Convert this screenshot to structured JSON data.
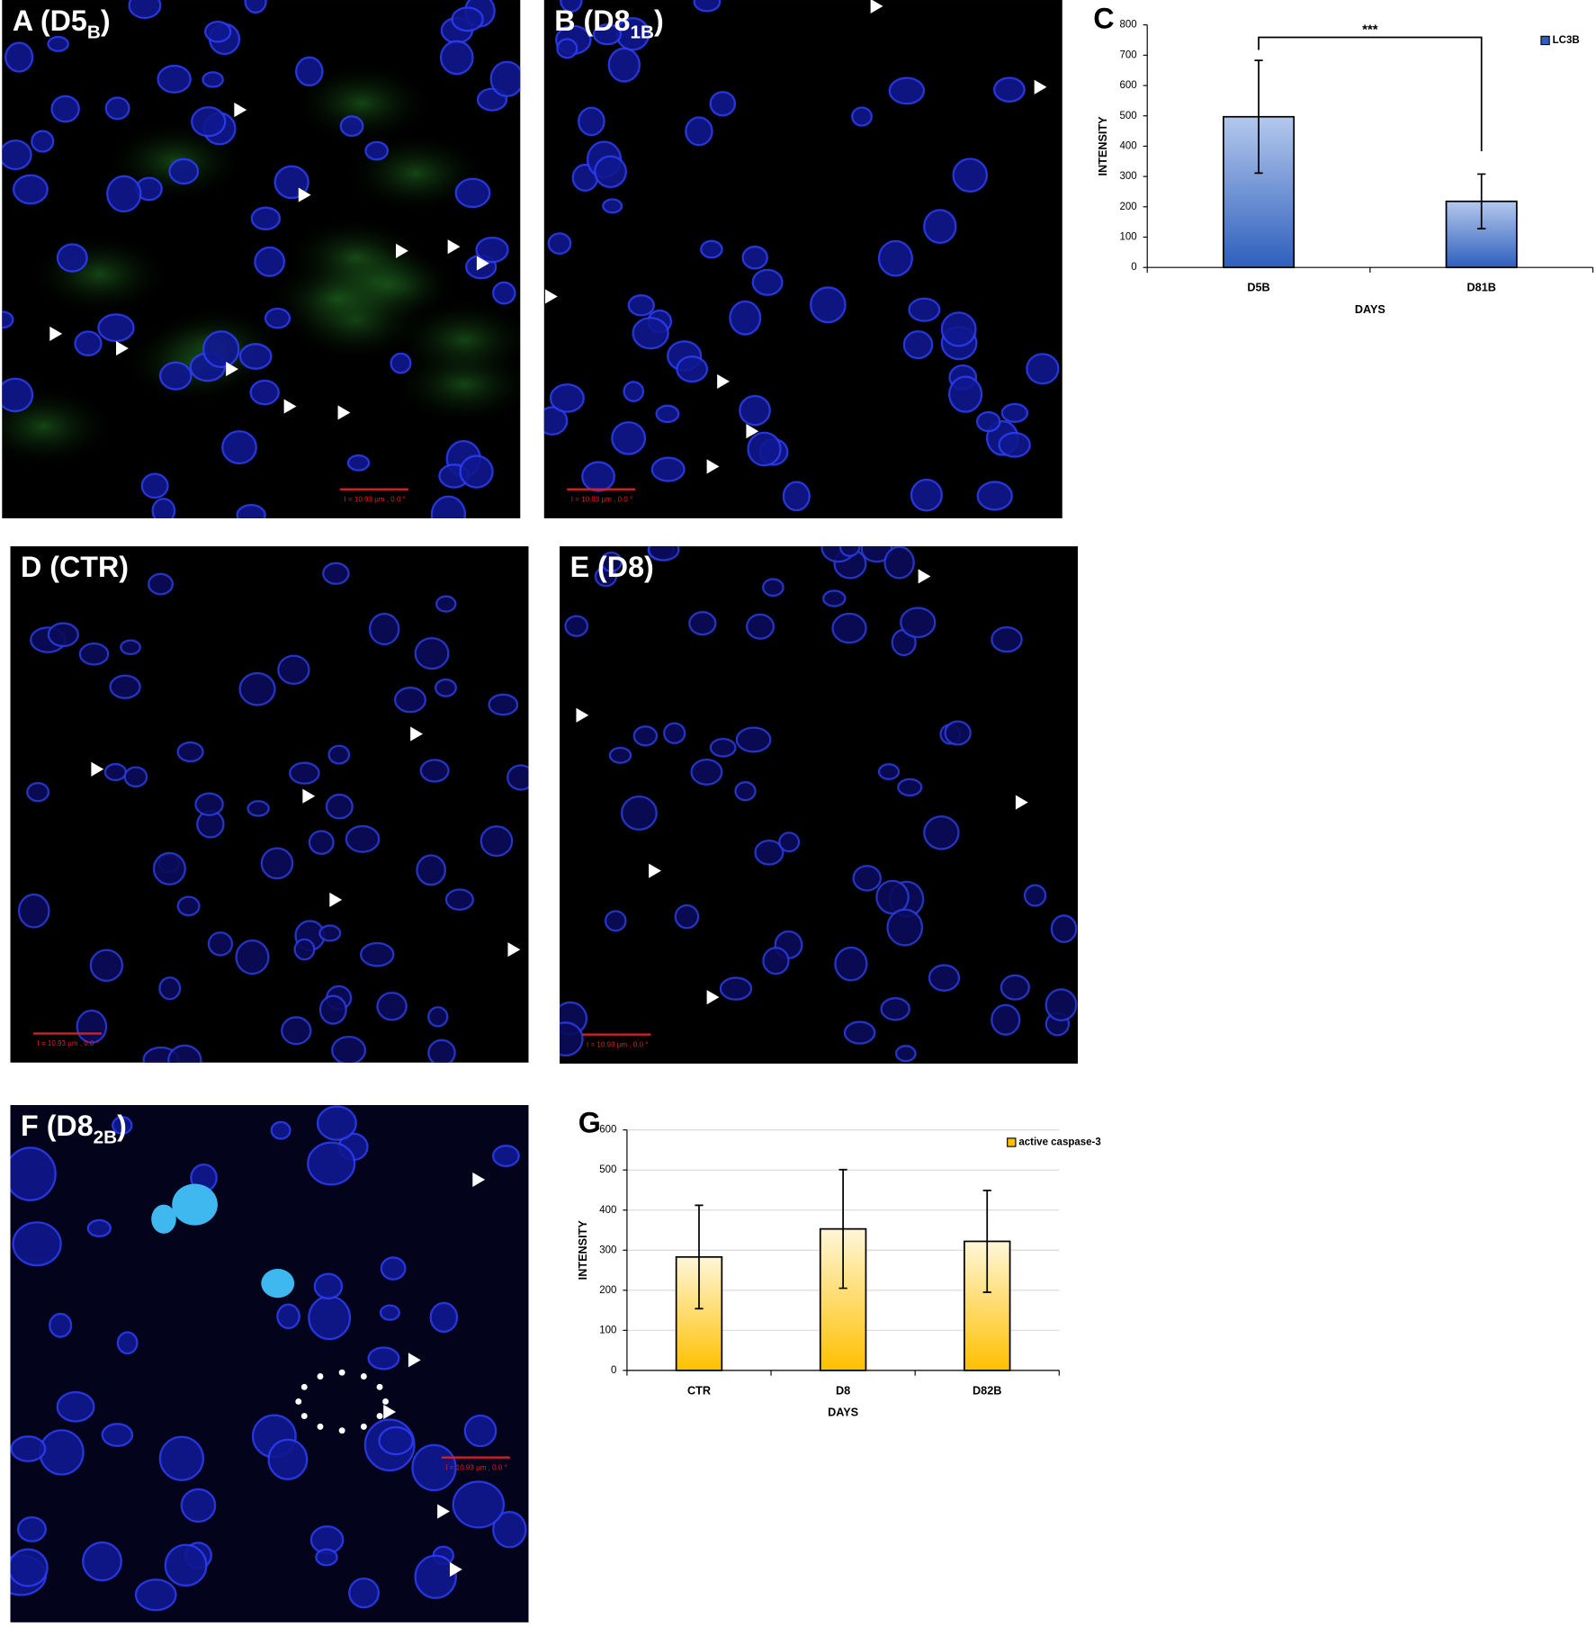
{
  "panels": [
    {
      "title": "A (D5",
      "subscript": "B",
      "suffix": ")",
      "scale_bar": "I = 10.93 µm , 0.0 °"
    },
    {
      "title": "B (D8",
      "subscript": "1B",
      "suffix": ")",
      "scale_bar": "I = 10.93 µm , 0.0 °"
    },
    {
      "title": "D (CTR)",
      "scale_bar": "I = 10.93 µm , 0.0 °"
    },
    {
      "title": "E (D8)",
      "scale_bar": "I = 10.93 µm , 0.0 °"
    },
    {
      "title": "F (D8",
      "subscript": "2B",
      "suffix": ")",
      "scale_bar": "I = 10.93 µm , 0.0 °"
    }
  ],
  "chart_data": [
    {
      "type": "bar",
      "panel_label": "C",
      "categories": [
        "D5B",
        "D81B"
      ],
      "series": [
        {
          "name": "LC3B",
          "color": "#2e5fbd",
          "values": [
            497,
            218
          ],
          "errors": [
            186,
            90
          ]
        }
      ],
      "ylim": [
        0,
        800
      ],
      "yticks": [
        0,
        100,
        200,
        300,
        400,
        500,
        600,
        700,
        800
      ],
      "grid": false,
      "ylabel": "INTENSITY",
      "xlabel": "DAYS",
      "annotation": "***",
      "legend": "top-right"
    },
    {
      "type": "bar",
      "panel_label": "G",
      "categories": [
        "CTR",
        "D8",
        "D82B"
      ],
      "series": [
        {
          "name": "active caspase-3",
          "color": "#ffc000",
          "values": [
            283,
            353,
            322
          ],
          "errors": [
            129,
            148,
            127
          ]
        }
      ],
      "ylim": [
        0,
        600
      ],
      "yticks": [
        0,
        100,
        200,
        300,
        400,
        500,
        600
      ],
      "grid": true,
      "ylabel": "INTENSITY",
      "xlabel": "DAYS",
      "legend": "top-right"
    }
  ]
}
